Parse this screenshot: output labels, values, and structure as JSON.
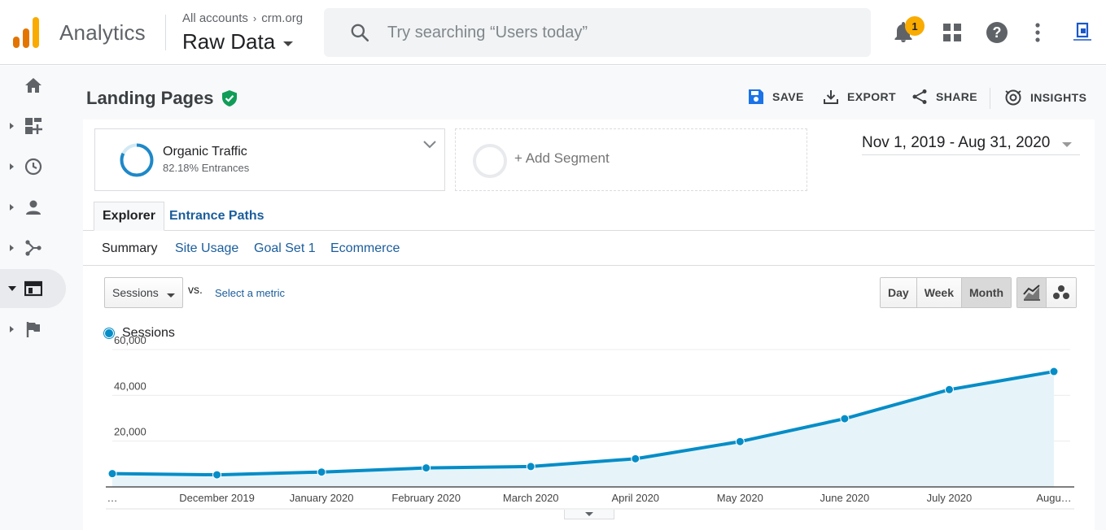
{
  "header": {
    "app_name": "Analytics",
    "breadcrumb_account": "All accounts",
    "breadcrumb_property": "crm.org",
    "view_name": "Raw Data",
    "search_placeholder": "Try searching “Users today”",
    "notifications_count": "1"
  },
  "sidebar": {
    "items": [
      {
        "icon": "home-icon"
      },
      {
        "icon": "customization-icon"
      },
      {
        "icon": "realtime-clock-icon"
      },
      {
        "icon": "audience-person-icon"
      },
      {
        "icon": "acquisition-icon"
      },
      {
        "icon": "behavior-icon",
        "active": true
      },
      {
        "icon": "conversions-flag-icon"
      }
    ]
  },
  "report": {
    "title": "Landing Pages",
    "actions": {
      "save": "SAVE",
      "export": "EXPORT",
      "share": "SHARE",
      "insights": "INSIGHTS"
    },
    "segment": {
      "name": "Organic Traffic",
      "sub": "82.18% Entrances"
    },
    "add_segment": "+ Add Segment",
    "date_range": "Nov 1, 2019 - Aug 31, 2020",
    "tabs": [
      "Explorer",
      "Entrance Paths"
    ],
    "subtabs": [
      "Summary",
      "Site Usage",
      "Goal Set 1",
      "Ecommerce"
    ],
    "metric": "Sessions",
    "vs": "vs.",
    "select_metric": "Select a metric",
    "granularity": [
      "Day",
      "Week",
      "Month"
    ],
    "granularity_selected": "Month",
    "legend_label": "Sessions"
  },
  "colors": {
    "accent": "#058dc7",
    "area_fill": "#e6f4fa",
    "link": "#1a5d9c",
    "badge": "#f9ab00"
  },
  "chart_data": {
    "type": "area",
    "title": "",
    "xlabel": "",
    "ylabel": "",
    "series": [
      {
        "name": "Sessions"
      }
    ],
    "categories": [
      "…",
      "December 2019",
      "January 2020",
      "February 2020",
      "March 2020",
      "April 2020",
      "May 2020",
      "June 2020",
      "July 2020",
      "Augu…"
    ],
    "values": [
      5800,
      5300,
      6500,
      8300,
      8900,
      12300,
      19800,
      29800,
      42500,
      50400
    ],
    "yticks": [
      20000,
      40000,
      60000
    ],
    "ytick_labels": [
      "20,000",
      "40,000",
      "60,000"
    ],
    "ylim": [
      0,
      60000
    ],
    "grid": true
  }
}
